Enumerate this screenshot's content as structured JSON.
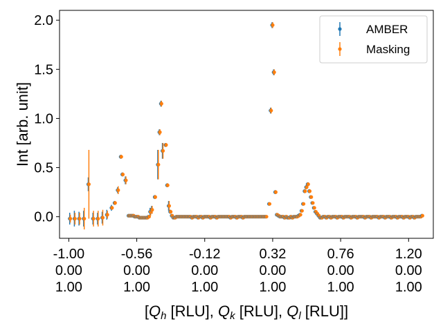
{
  "chart_data": {
    "type": "scatter",
    "title": "",
    "ylabel": "Int [arb. unit]",
    "xlabel_parts": [
      "[",
      "Q",
      "h",
      " [RLU], ",
      "Q",
      "k",
      " [RLU], ",
      "Q",
      "l",
      " [RLU]]"
    ],
    "xlim": [
      -1.06,
      1.36
    ],
    "ylim": [
      -0.22,
      2.1
    ],
    "grid": false,
    "legend_position": "top-right",
    "x_ticks": [
      {
        "h": "-1.00",
        "k": "0.00",
        "l": "1.00",
        "value": -1.0
      },
      {
        "h": "-0.56",
        "k": "0.00",
        "l": "1.00",
        "value": -0.56
      },
      {
        "h": "-0.12",
        "k": "0.00",
        "l": "1.00",
        "value": -0.12
      },
      {
        "h": "0.32",
        "k": "0.00",
        "l": "1.00",
        "value": 0.32
      },
      {
        "h": "0.76",
        "k": "0.00",
        "l": "1.00",
        "value": 0.76
      },
      {
        "h": "1.20",
        "k": "0.00",
        "l": "1.00",
        "value": 1.2
      }
    ],
    "y_ticks": [
      {
        "label": "0.0",
        "value": 0.0
      },
      {
        "label": "0.5",
        "value": 0.5
      },
      {
        "label": "1.0",
        "value": 1.0
      },
      {
        "label": "1.5",
        "value": 1.5
      },
      {
        "label": "2.0",
        "value": 2.0
      }
    ],
    "series": [
      {
        "name": "AMBER",
        "color": "#1f77b4"
      },
      {
        "name": "Masking",
        "color": "#ff7f0e"
      }
    ],
    "points": [
      [
        -0.99,
        -0.02,
        0.06,
        0.04
      ],
      [
        -0.96,
        -0.02,
        0.08,
        0.06
      ],
      [
        -0.93,
        -0.02,
        0.07,
        0.06
      ],
      [
        -0.9,
        -0.02,
        0.08,
        0.11
      ],
      [
        -0.87,
        0.33,
        0.07,
        0.35
      ],
      [
        -0.84,
        -0.02,
        0.06,
        0.08
      ],
      [
        -0.81,
        -0.02,
        0.06,
        0.08
      ],
      [
        -0.78,
        -0.01,
        0.06,
        0.08
      ],
      [
        -0.75,
        0.02,
        0.05,
        0.04
      ],
      [
        -0.72,
        0.09,
        0.03,
        0.02
      ],
      [
        -0.7,
        0.14,
        0.02,
        0.02
      ],
      [
        -0.68,
        0.27,
        0.03,
        0.04
      ],
      [
        -0.66,
        0.61,
        0.02,
        0.02
      ],
      [
        -0.65,
        0.43,
        0.02,
        0.02
      ],
      [
        -0.63,
        0.37,
        0.04,
        0.04
      ],
      [
        -0.61,
        0.01,
        0.01,
        0.01
      ],
      [
        -0.6,
        0.01,
        0.01,
        0.01
      ],
      [
        -0.59,
        0.01,
        0.01,
        0.01
      ],
      [
        -0.58,
        0.01,
        0.01,
        0.01
      ],
      [
        -0.57,
        0.0,
        0.01,
        0.01
      ],
      [
        -0.56,
        0.0,
        0.01,
        0.01
      ],
      [
        -0.55,
        0.0,
        0.01,
        0.01
      ],
      [
        -0.54,
        -0.01,
        0.01,
        0.01
      ],
      [
        -0.53,
        -0.01,
        0.01,
        0.01
      ],
      [
        -0.52,
        -0.01,
        0.01,
        0.01
      ],
      [
        -0.51,
        -0.01,
        0.01,
        0.01
      ],
      [
        -0.5,
        -0.01,
        0.01,
        0.01
      ],
      [
        -0.49,
        -0.01,
        0.01,
        0.01
      ],
      [
        -0.48,
        0.0,
        0.01,
        0.01
      ],
      [
        -0.47,
        0.05,
        0.04,
        0.04
      ],
      [
        -0.46,
        0.07,
        0.04,
        0.04
      ],
      [
        -0.44,
        0.2,
        0.02,
        0.02
      ],
      [
        -0.42,
        0.53,
        0.15,
        0.15
      ],
      [
        -0.41,
        0.86,
        0.03,
        0.03
      ],
      [
        -0.4,
        1.15,
        0.03,
        0.03
      ],
      [
        -0.39,
        0.67,
        0.08,
        0.08
      ],
      [
        -0.37,
        0.73,
        0.02,
        0.02
      ],
      [
        -0.36,
        0.32,
        0.02,
        0.02
      ],
      [
        -0.35,
        0.11,
        0.05,
        0.05
      ],
      [
        -0.34,
        0.05,
        0.02,
        0.02
      ],
      [
        -0.33,
        0.01,
        0.01,
        0.01
      ],
      [
        -0.32,
        -0.01,
        0.01,
        0.01
      ],
      [
        -0.31,
        -0.01,
        0.01,
        0.01
      ],
      [
        -0.3,
        0.0,
        0.01,
        0.01
      ],
      [
        -0.29,
        0.0,
        0.01,
        0.01
      ],
      [
        -0.28,
        0.0,
        0.01,
        0.01
      ],
      [
        -0.27,
        0.0,
        0.01,
        0.01
      ],
      [
        -0.26,
        0.0,
        0.01,
        0.01
      ],
      [
        -0.25,
        0.0,
        0.01,
        0.01
      ],
      [
        -0.24,
        0.0,
        0.01,
        0.01
      ],
      [
        -0.23,
        0.0,
        0.01,
        0.01
      ],
      [
        -0.22,
        0.0,
        0.01,
        0.01
      ],
      [
        -0.21,
        0.0,
        0.01,
        0.01
      ],
      [
        -0.2,
        -0.01,
        0.01,
        0.01
      ],
      [
        -0.19,
        0.0,
        0.01,
        0.01
      ],
      [
        -0.18,
        0.0,
        0.01,
        0.01
      ],
      [
        -0.17,
        0.0,
        0.01,
        0.01
      ],
      [
        -0.16,
        -0.01,
        0.01,
        0.01
      ],
      [
        -0.15,
        0.0,
        0.01,
        0.01
      ],
      [
        -0.14,
        0.0,
        0.01,
        0.01
      ],
      [
        -0.13,
        -0.01,
        0.01,
        0.01
      ],
      [
        -0.12,
        0.0,
        0.01,
        0.01
      ],
      [
        -0.11,
        0.0,
        0.01,
        0.01
      ],
      [
        -0.1,
        0.0,
        0.01,
        0.01
      ],
      [
        -0.09,
        0.0,
        0.01,
        0.01
      ],
      [
        -0.08,
        -0.01,
        0.01,
        0.01
      ],
      [
        -0.07,
        0.0,
        0.01,
        0.01
      ],
      [
        -0.06,
        0.0,
        0.01,
        0.01
      ],
      [
        -0.05,
        0.0,
        0.01,
        0.01
      ],
      [
        -0.04,
        -0.01,
        0.01,
        0.01
      ],
      [
        -0.03,
        0.0,
        0.01,
        0.01
      ],
      [
        -0.02,
        0.0,
        0.01,
        0.01
      ],
      [
        -0.01,
        0.0,
        0.01,
        0.01
      ],
      [
        0.0,
        0.0,
        0.01,
        0.01
      ],
      [
        0.01,
        0.0,
        0.01,
        0.01
      ],
      [
        0.02,
        0.0,
        0.01,
        0.01
      ],
      [
        0.03,
        0.0,
        0.01,
        0.01
      ],
      [
        0.04,
        0.0,
        0.01,
        0.01
      ],
      [
        0.05,
        -0.01,
        0.01,
        0.01
      ],
      [
        0.06,
        0.0,
        0.01,
        0.01
      ],
      [
        0.07,
        0.0,
        0.01,
        0.01
      ],
      [
        0.08,
        0.0,
        0.01,
        0.01
      ],
      [
        0.09,
        -0.01,
        0.01,
        0.01
      ],
      [
        0.1,
        0.0,
        0.01,
        0.01
      ],
      [
        0.11,
        0.0,
        0.01,
        0.01
      ],
      [
        0.12,
        0.0,
        0.01,
        0.01
      ],
      [
        0.13,
        -0.01,
        0.01,
        0.01
      ],
      [
        0.14,
        0.0,
        0.01,
        0.01
      ],
      [
        0.15,
        0.0,
        0.01,
        0.01
      ],
      [
        0.16,
        0.0,
        0.01,
        0.01
      ],
      [
        0.17,
        0.0,
        0.01,
        0.01
      ],
      [
        0.18,
        0.0,
        0.01,
        0.01
      ],
      [
        0.19,
        0.0,
        0.01,
        0.01
      ],
      [
        0.2,
        0.0,
        0.01,
        0.01
      ],
      [
        0.21,
        0.0,
        0.01,
        0.01
      ],
      [
        0.22,
        0.0,
        0.01,
        0.01
      ],
      [
        0.23,
        0.0,
        0.01,
        0.01
      ],
      [
        0.24,
        0.0,
        0.01,
        0.01
      ],
      [
        0.25,
        0.0,
        0.01,
        0.01
      ],
      [
        0.26,
        0.0,
        0.01,
        0.01
      ],
      [
        0.27,
        0.0,
        0.01,
        0.01
      ],
      [
        0.28,
        0.0,
        0.01,
        0.01
      ],
      [
        0.3,
        0.13,
        0.01,
        0.01
      ],
      [
        0.31,
        1.08,
        0.03,
        0.03
      ],
      [
        0.32,
        1.95,
        0.03,
        0.03
      ],
      [
        0.33,
        1.47,
        0.03,
        0.03
      ],
      [
        0.34,
        0.25,
        0.02,
        0.02
      ],
      [
        0.35,
        0.02,
        0.01,
        0.01
      ],
      [
        0.36,
        0.01,
        0.01,
        0.01
      ],
      [
        0.37,
        0.0,
        0.01,
        0.01
      ],
      [
        0.38,
        0.0,
        0.01,
        0.01
      ],
      [
        0.39,
        0.0,
        0.01,
        0.01
      ],
      [
        0.4,
        -0.01,
        0.01,
        0.01
      ],
      [
        0.41,
        0.0,
        0.01,
        0.01
      ],
      [
        0.42,
        -0.01,
        0.01,
        0.01
      ],
      [
        0.43,
        -0.01,
        0.01,
        0.01
      ],
      [
        0.44,
        0.0,
        0.01,
        0.01
      ],
      [
        0.45,
        -0.01,
        0.01,
        0.01
      ],
      [
        0.46,
        0.0,
        0.01,
        0.01
      ],
      [
        0.47,
        0.0,
        0.01,
        0.01
      ],
      [
        0.48,
        0.0,
        0.01,
        0.01
      ],
      [
        0.49,
        0.01,
        0.01,
        0.01
      ],
      [
        0.5,
        0.02,
        0.01,
        0.01
      ],
      [
        0.51,
        0.06,
        0.01,
        0.01
      ],
      [
        0.52,
        0.13,
        0.01,
        0.01
      ],
      [
        0.53,
        0.26,
        0.02,
        0.02
      ],
      [
        0.54,
        0.3,
        0.02,
        0.02
      ],
      [
        0.55,
        0.33,
        0.02,
        0.02
      ],
      [
        0.56,
        0.26,
        0.02,
        0.02
      ],
      [
        0.57,
        0.2,
        0.01,
        0.01
      ],
      [
        0.58,
        0.14,
        0.01,
        0.01
      ],
      [
        0.59,
        0.09,
        0.01,
        0.01
      ],
      [
        0.6,
        0.05,
        0.01,
        0.01
      ],
      [
        0.61,
        0.03,
        0.01,
        0.01
      ],
      [
        0.62,
        0.01,
        0.01,
        0.01
      ],
      [
        0.63,
        -0.01,
        0.01,
        0.01
      ],
      [
        0.64,
        -0.01,
        0.01,
        0.01
      ],
      [
        0.65,
        0.0,
        0.01,
        0.01
      ],
      [
        0.66,
        0.0,
        0.01,
        0.01
      ],
      [
        0.67,
        -0.01,
        0.01,
        0.01
      ],
      [
        0.68,
        0.0,
        0.01,
        0.01
      ],
      [
        0.69,
        0.0,
        0.01,
        0.01
      ],
      [
        0.7,
        -0.01,
        0.01,
        0.01
      ],
      [
        0.71,
        0.0,
        0.01,
        0.01
      ],
      [
        0.72,
        0.0,
        0.01,
        0.01
      ],
      [
        0.73,
        0.0,
        0.01,
        0.01
      ],
      [
        0.74,
        -0.01,
        0.01,
        0.01
      ],
      [
        0.75,
        0.0,
        0.01,
        0.01
      ],
      [
        0.76,
        0.0,
        0.01,
        0.01
      ],
      [
        0.77,
        0.0,
        0.01,
        0.01
      ],
      [
        0.78,
        -0.01,
        0.01,
        0.01
      ],
      [
        0.79,
        0.0,
        0.01,
        0.01
      ],
      [
        0.8,
        0.0,
        0.01,
        0.01
      ],
      [
        0.81,
        0.0,
        0.01,
        0.01
      ],
      [
        0.82,
        0.0,
        0.01,
        0.01
      ],
      [
        0.83,
        -0.01,
        0.01,
        0.01
      ],
      [
        0.84,
        0.0,
        0.01,
        0.01
      ],
      [
        0.85,
        0.0,
        0.01,
        0.01
      ],
      [
        0.86,
        0.0,
        0.01,
        0.01
      ],
      [
        0.87,
        -0.01,
        0.01,
        0.01
      ],
      [
        0.88,
        0.0,
        0.01,
        0.01
      ],
      [
        0.89,
        0.0,
        0.01,
        0.01
      ],
      [
        0.9,
        0.0,
        0.01,
        0.01
      ],
      [
        0.91,
        0.0,
        0.01,
        0.01
      ],
      [
        0.92,
        -0.01,
        0.01,
        0.01
      ],
      [
        0.93,
        0.0,
        0.01,
        0.01
      ],
      [
        0.94,
        0.0,
        0.01,
        0.01
      ],
      [
        0.95,
        0.0,
        0.01,
        0.01
      ],
      [
        0.96,
        -0.01,
        0.01,
        0.01
      ],
      [
        0.97,
        0.0,
        0.01,
        0.01
      ],
      [
        0.98,
        0.0,
        0.01,
        0.01
      ],
      [
        0.99,
        0.0,
        0.01,
        0.01
      ],
      [
        1.0,
        0.0,
        0.01,
        0.01
      ],
      [
        1.01,
        -0.01,
        0.01,
        0.01
      ],
      [
        1.02,
        0.0,
        0.01,
        0.01
      ],
      [
        1.03,
        0.0,
        0.01,
        0.01
      ],
      [
        1.04,
        0.0,
        0.01,
        0.01
      ],
      [
        1.05,
        -0.01,
        0.01,
        0.01
      ],
      [
        1.06,
        0.0,
        0.01,
        0.01
      ],
      [
        1.07,
        0.0,
        0.01,
        0.01
      ],
      [
        1.08,
        0.0,
        0.01,
        0.01
      ],
      [
        1.09,
        -0.01,
        0.01,
        0.01
      ],
      [
        1.1,
        0.0,
        0.01,
        0.01
      ],
      [
        1.11,
        0.0,
        0.01,
        0.01
      ],
      [
        1.12,
        0.0,
        0.01,
        0.01
      ],
      [
        1.13,
        -0.01,
        0.01,
        0.01
      ],
      [
        1.14,
        0.0,
        0.01,
        0.01
      ],
      [
        1.15,
        0.0,
        0.01,
        0.01
      ],
      [
        1.16,
        0.0,
        0.01,
        0.01
      ],
      [
        1.17,
        -0.01,
        0.01,
        0.01
      ],
      [
        1.18,
        0.0,
        0.01,
        0.01
      ],
      [
        1.19,
        0.0,
        0.01,
        0.01
      ],
      [
        1.2,
        0.0,
        0.01,
        0.01
      ],
      [
        1.21,
        -0.01,
        0.01,
        0.01
      ],
      [
        1.22,
        0.0,
        0.01,
        0.01
      ],
      [
        1.23,
        0.0,
        0.01,
        0.01
      ],
      [
        1.24,
        -0.01,
        0.01,
        0.01
      ],
      [
        1.25,
        0.0,
        0.01,
        0.01
      ],
      [
        1.26,
        0.0,
        0.01,
        0.01
      ],
      [
        1.27,
        0.0,
        0.01,
        0.01
      ],
      [
        1.28,
        0.0,
        0.01,
        0.01
      ],
      [
        1.29,
        0.01,
        0.01,
        0.01
      ]
    ]
  }
}
